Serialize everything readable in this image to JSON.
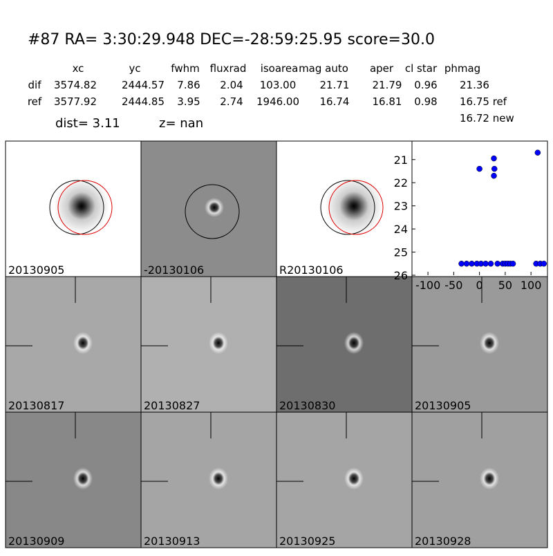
{
  "title": "#87   RA= 3:30:29.948 DEC=-28:59:25.95       score=30.0",
  "table": {
    "header": [
      "xc",
      "yc",
      "fwhm",
      "fluxrad",
      "isoarea",
      "mag auto",
      "aper",
      "cl star",
      "phmag"
    ],
    "rows": [
      [
        "dif",
        "3574.82",
        "2444.57",
        "7.86",
        "2.04",
        "103.00",
        "21.71",
        "21.79",
        "0.96",
        "21.36"
      ],
      [
        "ref",
        "3577.92",
        "2444.85",
        "3.95",
        "2.74",
        "1946.00",
        "16.74",
        "16.81",
        "0.98",
        "16.75 ref"
      ]
    ],
    "extra": "16.72 new"
  },
  "dist": "dist=  3.11",
  "z": "z=   nan",
  "panels": [
    {
      "label": "20130905"
    },
    {
      "label": "-20130106"
    },
    {
      "label": "R20130106"
    },
    {
      "label": "20130817"
    },
    {
      "label": "20130827"
    },
    {
      "label": "20130830"
    },
    {
      "label": "20130905",
      "color": "#ff0000"
    },
    {
      "label": "20130909"
    },
    {
      "label": "20130913"
    },
    {
      "label": "20130925"
    },
    {
      "label": "20130928"
    }
  ],
  "chart_data": {
    "type": "scatter",
    "color": "#0000ff",
    "x": [
      0,
      28,
      29,
      28,
      113,
      -35,
      -25,
      -15,
      -5,
      3,
      12,
      22,
      35,
      45,
      50,
      55,
      60,
      65,
      110,
      118,
      125
    ],
    "values": [
      21.4,
      20.95,
      21.4,
      21.7,
      20.7,
      25.5,
      25.5,
      25.5,
      25.5,
      25.5,
      25.5,
      25.5,
      25.5,
      25.5,
      25.5,
      25.5,
      25.5,
      25.5,
      25.5,
      25.5,
      25.5
    ],
    "xlim": [
      -131,
      132
    ],
    "xticks": [
      -100,
      -50,
      0,
      50,
      100
    ],
    "ylim": [
      26,
      20.2
    ],
    "yticks": [
      21,
      22,
      23,
      24,
      25,
      26
    ]
  }
}
